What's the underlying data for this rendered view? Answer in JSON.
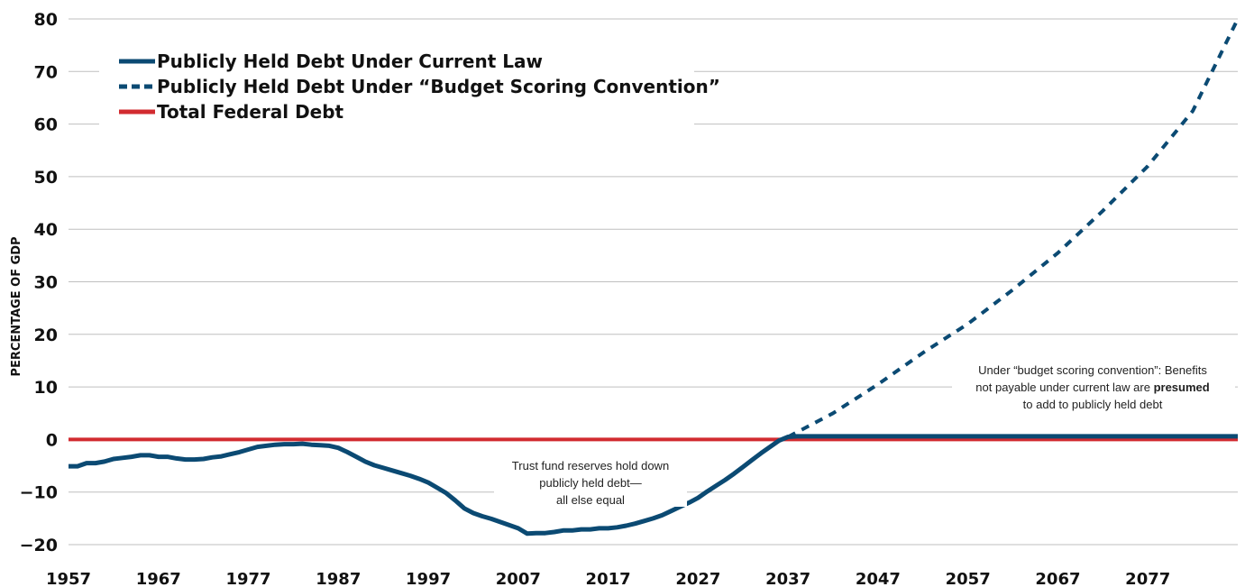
{
  "chart_data": {
    "type": "line",
    "title": "",
    "xlabel": "",
    "ylabel": "PERCENTAGE OF GDP",
    "xlim": [
      1957,
      2087
    ],
    "ylim": [
      -20,
      80
    ],
    "x_ticks": [
      1957,
      1967,
      1977,
      1987,
      1997,
      2007,
      2017,
      2027,
      2037,
      2047,
      2057,
      2067,
      2077
    ],
    "y_ticks": [
      -20,
      -10,
      0,
      10,
      20,
      30,
      40,
      50,
      60,
      70,
      80
    ],
    "y_tick_labels": [
      "−20",
      "−10",
      "0",
      "10",
      "20",
      "30",
      "40",
      "50",
      "60",
      "70",
      "80"
    ],
    "grid": "horizontal",
    "legend_position": "top-left",
    "colors": {
      "current_law": "#0b4a73",
      "scoring_convention": "#0b4a73",
      "total_federal_debt": "#d22b30",
      "grid": "#bfbfbf"
    },
    "series": [
      {
        "name": "Publicly Held Debt Under Current Law",
        "style": "solid",
        "x": [
          1957,
          1958,
          1959,
          1960,
          1961,
          1962,
          1963,
          1964,
          1965,
          1966,
          1967,
          1968,
          1969,
          1970,
          1971,
          1972,
          1973,
          1974,
          1975,
          1976,
          1977,
          1978,
          1979,
          1980,
          1981,
          1982,
          1983,
          1984,
          1985,
          1986,
          1987,
          1988,
          1989,
          1990,
          1991,
          1992,
          1993,
          1994,
          1995,
          1996,
          1997,
          1998,
          1999,
          2000,
          2001,
          2002,
          2003,
          2004,
          2005,
          2006,
          2007,
          2008,
          2009,
          2010,
          2011,
          2012,
          2013,
          2014,
          2015,
          2016,
          2017,
          2018,
          2019,
          2020,
          2021,
          2022,
          2023,
          2024,
          2025,
          2026,
          2027,
          2028,
          2029,
          2030,
          2031,
          2032,
          2033,
          2034,
          2035,
          2036,
          2037,
          2038,
          2040,
          2050,
          2060,
          2070,
          2080,
          2087
        ],
        "y": [
          -5.1,
          -5.1,
          -4.5,
          -4.5,
          -4.2,
          -3.7,
          -3.5,
          -3.3,
          -3.0,
          -3.0,
          -3.3,
          -3.3,
          -3.6,
          -3.8,
          -3.8,
          -3.7,
          -3.4,
          -3.2,
          -2.8,
          -2.4,
          -1.9,
          -1.4,
          -1.2,
          -1.0,
          -0.9,
          -0.9,
          -0.8,
          -1.0,
          -1.1,
          -1.2,
          -1.6,
          -2.4,
          -3.3,
          -4.2,
          -4.9,
          -5.4,
          -5.9,
          -6.4,
          -6.9,
          -7.5,
          -8.2,
          -9.2,
          -10.2,
          -11.6,
          -13.1,
          -14.0,
          -14.6,
          -15.1,
          -15.7,
          -16.3,
          -16.9,
          -17.9,
          -17.8,
          -17.8,
          -17.6,
          -17.3,
          -17.3,
          -17.1,
          -17.1,
          -16.9,
          -16.9,
          -16.7,
          -16.4,
          -16.0,
          -15.5,
          -15.0,
          -14.4,
          -13.6,
          -12.8,
          -12.0,
          -11.1,
          -9.9,
          -8.8,
          -7.7,
          -6.5,
          -5.2,
          -3.9,
          -2.6,
          -1.4,
          -0.2,
          0.5,
          0.6,
          0.6,
          0.6,
          0.6,
          0.6,
          0.6,
          0.6
        ]
      },
      {
        "name": "Publicly Held Debt Under “Budget Scoring Convention”",
        "style": "dashed",
        "x": [
          2037,
          2042,
          2047,
          2052,
          2057,
          2062,
          2067,
          2072,
          2077,
          2082,
          2087
        ],
        "y": [
          0.5,
          5.0,
          10.5,
          16.5,
          22.0,
          28.5,
          35.5,
          43.5,
          52.0,
          62.5,
          80.0
        ]
      },
      {
        "name": "Total Federal Debt",
        "style": "solid",
        "x": [
          1957,
          2087
        ],
        "y": [
          0,
          0
        ]
      }
    ],
    "annotations": [
      {
        "id": "trust",
        "lines": [
          "Trust fund reserves hold down",
          "publicly held debt—",
          "all else equal"
        ]
      },
      {
        "id": "scoring",
        "line1": "Under “budget scoring convention”: Benefits",
        "line2_pre": "not payable under current law are ",
        "line2_bold": "presumed",
        "line3": "to add to publicly held debt"
      }
    ]
  }
}
